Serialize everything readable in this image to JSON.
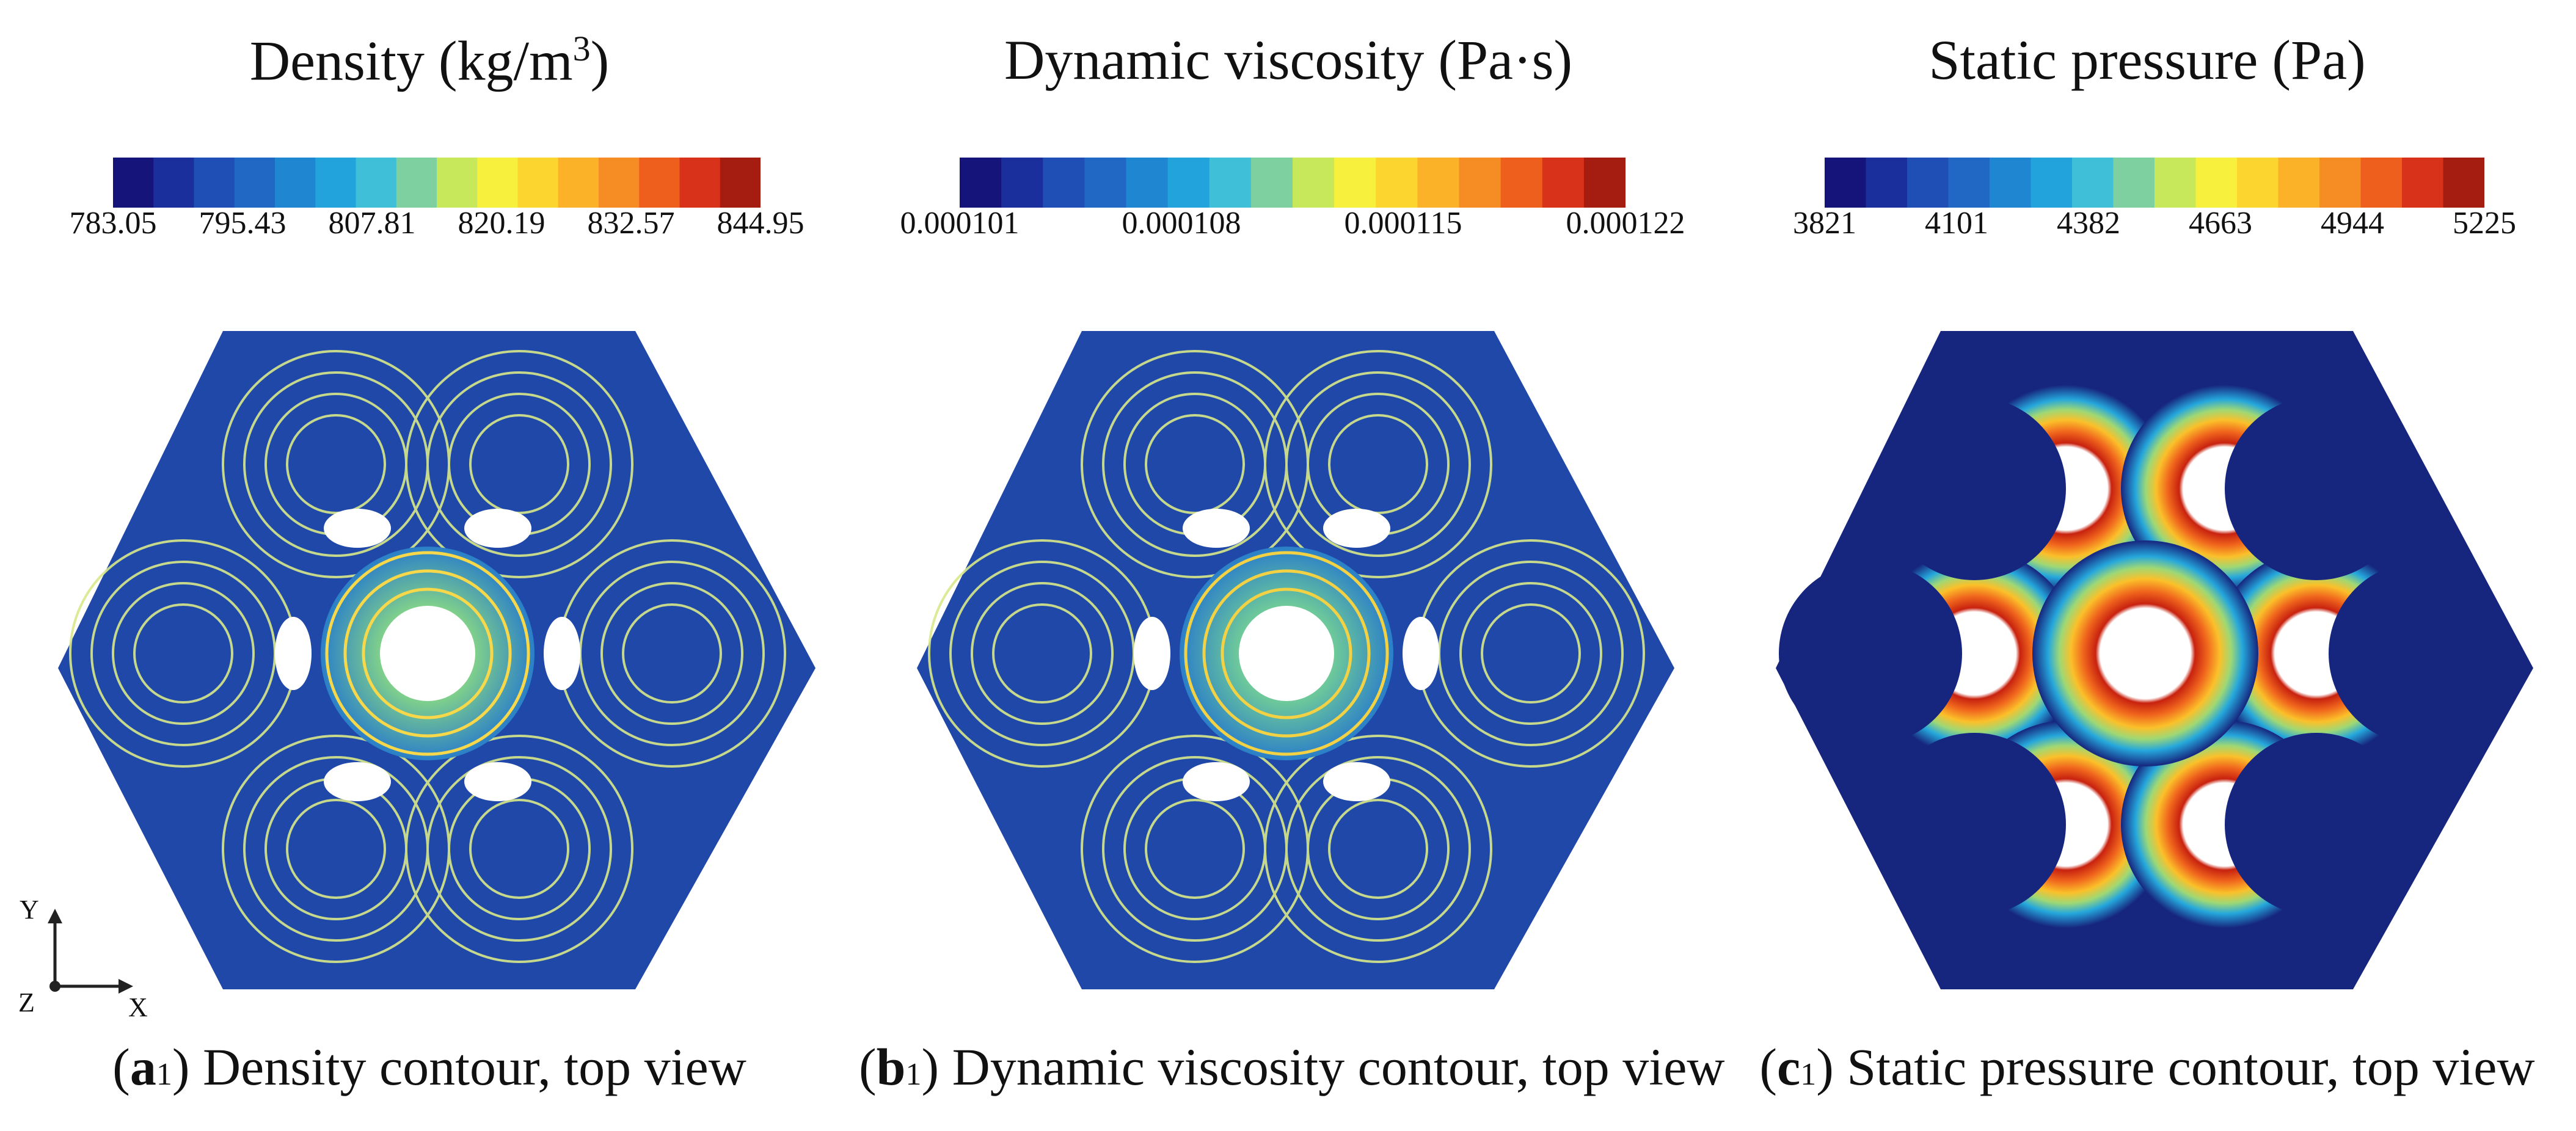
{
  "panels": [
    {
      "title_main": "Density (kg/m",
      "title_sup": "3",
      "title_end": ")",
      "ticks": [
        "783.05",
        "795.43",
        "807.81",
        "820.19",
        "832.57",
        "844.95"
      ],
      "caption_open": "(",
      "caption_letter": "a",
      "caption_sub": "1",
      "caption_rest": ") Density contour, top view"
    },
    {
      "title_main": "Dynamic viscosity (Pa·s)",
      "ticks": [
        "0.000101",
        "0.000108",
        "0.000115",
        "0.000122"
      ],
      "caption_open": "(",
      "caption_letter": "b",
      "caption_sub": "1",
      "caption_rest": ") Dynamic viscosity contour, top view"
    },
    {
      "title_main": "Static pressure (Pa)",
      "ticks": [
        "3821",
        "4101",
        "4382",
        "4663",
        "4944",
        "5225"
      ],
      "caption_open": "(",
      "caption_letter": "c",
      "caption_sub": "1",
      "caption_rest": ") Static pressure contour, top view"
    }
  ],
  "axes": {
    "y": "Y",
    "z": "Z",
    "x": "X"
  },
  "colormap": [
    "#14147a",
    "#1b2f9c",
    "#1f4fb5",
    "#2168c4",
    "#1f86d2",
    "#22a3dc",
    "#3fbfd8",
    "#7fd0a0",
    "#c7e85a",
    "#f7f03c",
    "#fcd52e",
    "#fbb228",
    "#f68d24",
    "#ee5f1e",
    "#d8321a",
    "#a51d10"
  ]
}
